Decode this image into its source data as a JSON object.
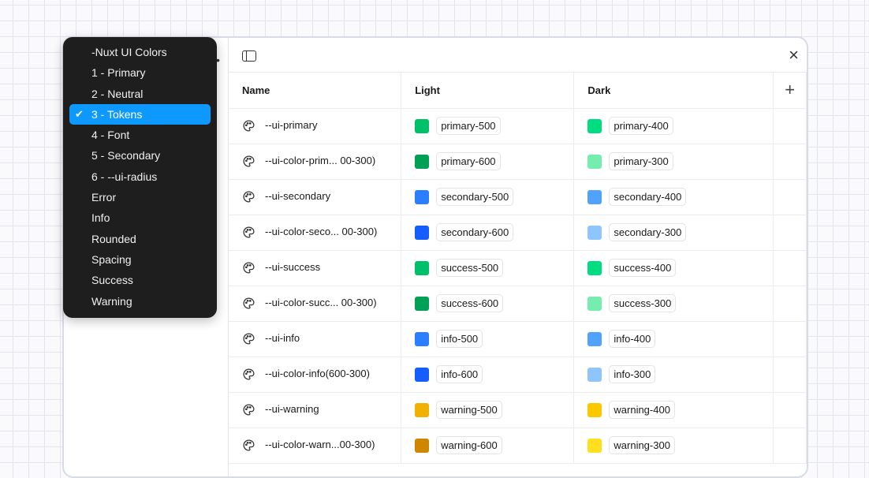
{
  "menu": {
    "items": [
      {
        "label": "-Nuxt UI Colors",
        "selected": false
      },
      {
        "label": "1 - Primary",
        "selected": false
      },
      {
        "label": "2 - Neutral",
        "selected": false
      },
      {
        "label": "3 - Tokens",
        "selected": true
      },
      {
        "label": "4 - Font",
        "selected": false
      },
      {
        "label": "5 - Secondary",
        "selected": false
      },
      {
        "label": "6 - --ui-radius",
        "selected": false
      },
      {
        "label": "Error",
        "selected": false
      },
      {
        "label": "Info",
        "selected": false
      },
      {
        "label": "Rounded",
        "selected": false
      },
      {
        "label": "Spacing",
        "selected": false
      },
      {
        "label": "Success",
        "selected": false
      },
      {
        "label": "Warning",
        "selected": false
      }
    ],
    "check": "✔",
    "highlight": "#0d99ff"
  },
  "table": {
    "headers": [
      "Name",
      "Light",
      "Dark"
    ],
    "add_label": "+",
    "close_label": "×",
    "rows": [
      {
        "name": "--ui-primary",
        "light": "primary-500",
        "light_color": "#00c16a",
        "dark": "primary-400",
        "dark_color": "#00dc82"
      },
      {
        "name": "--ui-color-prim... 00-300)",
        "light": "primary-600",
        "light_color": "#00a155",
        "dark": "primary-300",
        "dark_color": "#75edae"
      },
      {
        "name": "--ui-secondary",
        "light": "secondary-500",
        "light_color": "#2b7fff",
        "dark": "secondary-400",
        "dark_color": "#51a2ff"
      },
      {
        "name": "--ui-color-seco... 00-300)",
        "light": "secondary-600",
        "light_color": "#155dfc",
        "dark": "secondary-300",
        "dark_color": "#8ec5ff"
      },
      {
        "name": "--ui-success",
        "light": "success-500",
        "light_color": "#00c16a",
        "dark": "success-400",
        "dark_color": "#00dc82"
      },
      {
        "name": "--ui-color-succ... 00-300)",
        "light": "success-600",
        "light_color": "#00a155",
        "dark": "success-300",
        "dark_color": "#75edae"
      },
      {
        "name": "--ui-info",
        "light": "info-500",
        "light_color": "#2b7fff",
        "dark": "info-400",
        "dark_color": "#51a2ff"
      },
      {
        "name": "--ui-color-info(600-300)",
        "light": "info-600",
        "light_color": "#155dfc",
        "dark": "info-300",
        "dark_color": "#8ec5ff"
      },
      {
        "name": "--ui-warning",
        "light": "warning-500",
        "light_color": "#f0b100",
        "dark": "warning-400",
        "dark_color": "#fdc700"
      },
      {
        "name": "--ui-color-warn...00-300)",
        "light": "warning-600",
        "light_color": "#d08700",
        "dark": "warning-300",
        "dark_color": "#ffdf20"
      }
    ]
  }
}
